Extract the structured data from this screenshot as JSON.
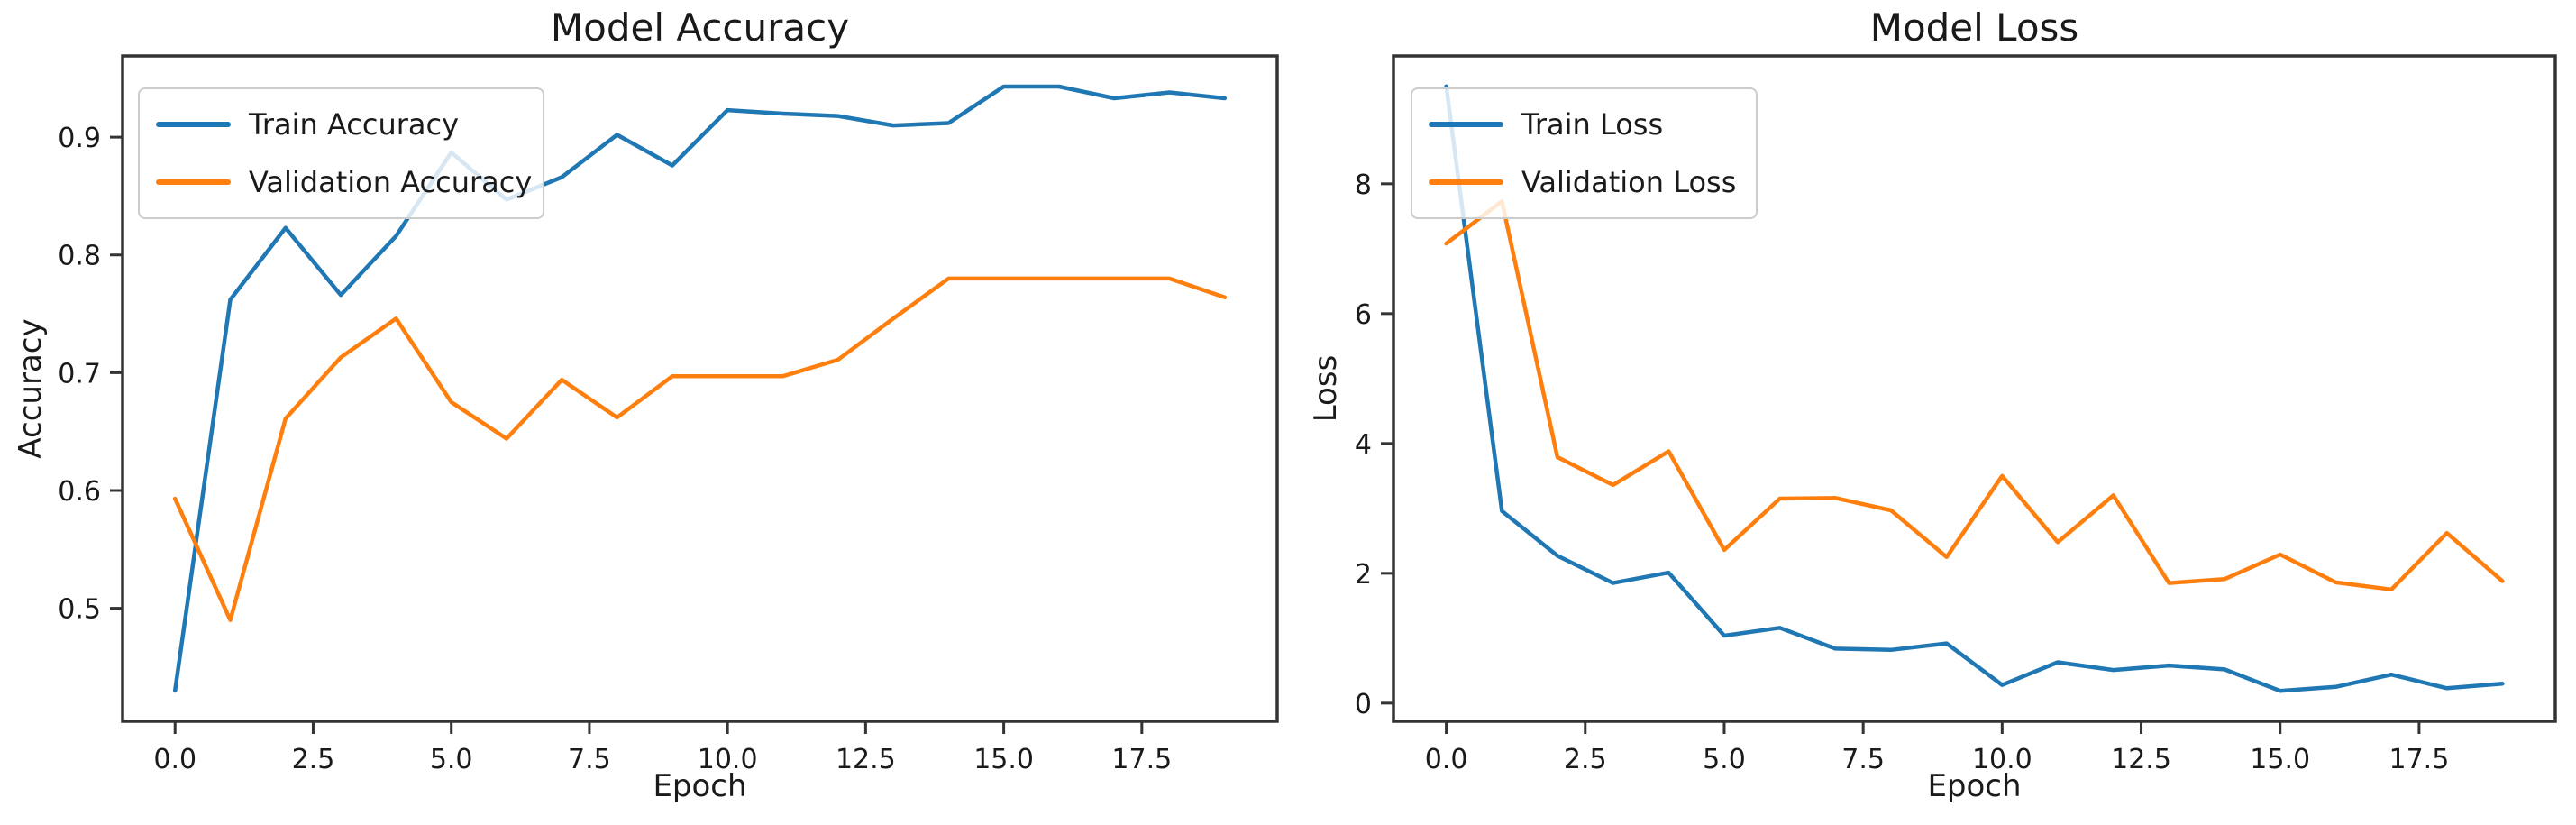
{
  "figure": {
    "background": "#ffffff"
  },
  "colors": {
    "train": "#1f77b4",
    "validation": "#ff7f0e",
    "text": "#1a1a1a",
    "spine": "#333333",
    "legend_border": "#cccccc",
    "legend_background": "rgba(255,255,255,0.82)"
  },
  "chart_data": [
    {
      "type": "line",
      "title": "Model Accuracy",
      "xlabel": "Epoch",
      "ylabel": "Accuracy",
      "x": [
        0,
        1,
        2,
        3,
        4,
        5,
        6,
        7,
        8,
        9,
        10,
        11,
        12,
        13,
        14,
        15,
        16,
        17,
        18,
        19
      ],
      "series": [
        {
          "name": "Train Accuracy",
          "color": "#1f77b4",
          "values": [
            0.43,
            0.762,
            0.823,
            0.766,
            0.816,
            0.887,
            0.847,
            0.866,
            0.902,
            0.876,
            0.923,
            0.92,
            0.918,
            0.91,
            0.912,
            0.943,
            0.943,
            0.933,
            0.938,
            0.933
          ]
        },
        {
          "name": "Validation Accuracy",
          "color": "#ff7f0e",
          "values": [
            0.593,
            0.49,
            0.661,
            0.713,
            0.746,
            0.675,
            0.644,
            0.694,
            0.662,
            0.697,
            0.697,
            0.697,
            0.711,
            0.746,
            0.78,
            0.78,
            0.78,
            0.78,
            0.78,
            0.764
          ]
        }
      ],
      "xlim": [
        -0.95,
        19.95
      ],
      "ylim": [
        0.404,
        0.969
      ],
      "xticks": [
        0,
        2.5,
        5,
        7.5,
        10,
        12.5,
        15,
        17.5
      ],
      "xtick_labels": [
        "0.0",
        "2.5",
        "5.0",
        "7.5",
        "10.0",
        "12.5",
        "15.0",
        "17.5"
      ],
      "yticks": [
        0.5,
        0.6,
        0.7,
        0.8,
        0.9
      ],
      "ytick_labels": [
        "0.5",
        "0.6",
        "0.7",
        "0.8",
        "0.9"
      ],
      "legend": [
        "Train Accuracy",
        "Validation Accuracy"
      ],
      "legend_position": "upper-left",
      "grid": false
    },
    {
      "type": "line",
      "title": "Model Loss",
      "xlabel": "Epoch",
      "ylabel": "Loss",
      "x": [
        0,
        1,
        2,
        3,
        4,
        5,
        6,
        7,
        8,
        9,
        10,
        11,
        12,
        13,
        14,
        15,
        16,
        17,
        18,
        19
      ],
      "series": [
        {
          "name": "Train Loss",
          "color": "#1f77b4",
          "values": [
            9.5,
            2.96,
            2.27,
            1.85,
            2.01,
            1.04,
            1.16,
            0.84,
            0.82,
            0.92,
            0.28,
            0.63,
            0.51,
            0.58,
            0.52,
            0.19,
            0.25,
            0.44,
            0.23,
            0.3
          ]
        },
        {
          "name": "Validation Loss",
          "color": "#ff7f0e",
          "values": [
            7.08,
            7.73,
            3.79,
            3.36,
            3.88,
            2.36,
            3.15,
            3.16,
            2.97,
            2.25,
            3.5,
            2.48,
            3.2,
            1.85,
            1.91,
            2.29,
            1.86,
            1.75,
            2.62,
            1.88
          ]
        }
      ],
      "xlim": [
        -0.95,
        19.95
      ],
      "ylim": [
        -0.28,
        9.97
      ],
      "xticks": [
        0,
        2.5,
        5,
        7.5,
        10,
        12.5,
        15,
        17.5
      ],
      "xtick_labels": [
        "0.0",
        "2.5",
        "5.0",
        "7.5",
        "10.0",
        "12.5",
        "15.0",
        "17.5"
      ],
      "yticks": [
        0,
        2,
        4,
        6,
        8
      ],
      "ytick_labels": [
        "0",
        "2",
        "4",
        "6",
        "8"
      ],
      "legend": [
        "Train Loss",
        "Validation Loss"
      ],
      "legend_position": "upper-left",
      "grid": false
    }
  ]
}
